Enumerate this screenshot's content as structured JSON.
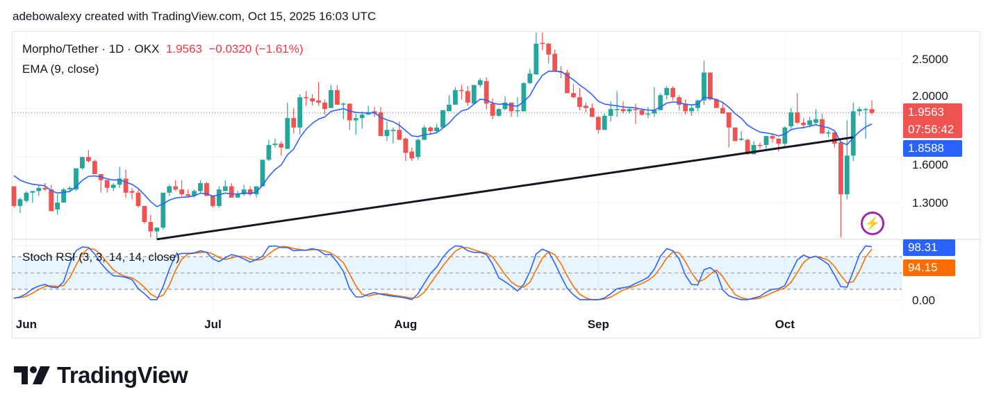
{
  "credit": "adebowalexy created with TradingView.com, Oct 15, 2025 16:03 UTC",
  "legend": {
    "symbol": "Morpho/Tether · 1D · OKX",
    "last": "1.9563",
    "change": "−0.0320 (−1.61%)",
    "ema": "EMA (9, close)",
    "stoch": "Stoch RSI (3, 3, 14, 14, close)"
  },
  "badges": {
    "price": "1.9563",
    "countdown": "07:56:42",
    "ema": "1.8588",
    "k": "98.31",
    "d": "94.15"
  },
  "brand": "TradingView",
  "colors": {
    "up": "#26a69a",
    "down": "#ef5350",
    "ema": "#2962ff",
    "k": "#2962ff",
    "d": "#ff6d00",
    "trend": "#131722",
    "price_line": "#f23645"
  },
  "chart_data": {
    "type": "candlestick",
    "title": "Morpho/Tether · 1D · OKX",
    "first_date": "2025-05-30",
    "last_date": "2025-10-15",
    "scale": "log",
    "price_ticks": [
      {
        "v": 2.5,
        "label": "2.5000"
      },
      {
        "v": 2.0,
        "label": "2.0000"
      },
      {
        "v": 1.6,
        "label": "1.6000"
      },
      {
        "v": 1.3,
        "label": "1.3000"
      }
    ],
    "month_ticks": [
      {
        "i": 2,
        "label": "Jun"
      },
      {
        "i": 32,
        "label": "Jul"
      },
      {
        "i": 63,
        "label": "Aug"
      },
      {
        "i": 94,
        "label": "Sep"
      },
      {
        "i": 124,
        "label": "Oct"
      }
    ],
    "ohlc": [
      [
        1.4,
        1.4,
        1.27,
        1.28
      ],
      [
        1.28,
        1.33,
        1.24,
        1.32
      ],
      [
        1.31,
        1.37,
        1.3,
        1.36
      ],
      [
        1.36,
        1.37,
        1.3,
        1.37
      ],
      [
        1.37,
        1.41,
        1.34,
        1.39
      ],
      [
        1.39,
        1.42,
        1.37,
        1.38
      ],
      [
        1.38,
        1.41,
        1.25,
        1.25
      ],
      [
        1.26,
        1.35,
        1.23,
        1.3
      ],
      [
        1.3,
        1.39,
        1.3,
        1.38
      ],
      [
        1.38,
        1.4,
        1.37,
        1.39
      ],
      [
        1.38,
        1.52,
        1.37,
        1.52
      ],
      [
        1.52,
        1.6,
        1.51,
        1.6
      ],
      [
        1.6,
        1.65,
        1.56,
        1.57
      ],
      [
        1.57,
        1.58,
        1.48,
        1.48
      ],
      [
        1.48,
        1.48,
        1.36,
        1.44
      ],
      [
        1.44,
        1.44,
        1.36,
        1.39
      ],
      [
        1.39,
        1.42,
        1.37,
        1.41
      ],
      [
        1.41,
        1.53,
        1.39,
        1.45
      ],
      [
        1.45,
        1.51,
        1.33,
        1.36
      ],
      [
        1.37,
        1.39,
        1.32,
        1.36
      ],
      [
        1.36,
        1.38,
        1.27,
        1.28
      ],
      [
        1.28,
        1.28,
        1.18,
        1.19
      ],
      [
        1.19,
        1.23,
        1.11,
        1.14
      ],
      [
        1.14,
        1.16,
        1.1,
        1.16
      ],
      [
        1.16,
        1.36,
        1.15,
        1.36
      ],
      [
        1.36,
        1.41,
        1.34,
        1.4
      ],
      [
        1.4,
        1.44,
        1.37,
        1.38
      ],
      [
        1.38,
        1.44,
        1.34,
        1.35
      ],
      [
        1.35,
        1.38,
        1.33,
        1.34
      ],
      [
        1.34,
        1.38,
        1.33,
        1.37
      ],
      [
        1.37,
        1.44,
        1.36,
        1.42
      ],
      [
        1.42,
        1.43,
        1.34,
        1.34
      ],
      [
        1.34,
        1.34,
        1.27,
        1.28
      ],
      [
        1.28,
        1.4,
        1.27,
        1.38
      ],
      [
        1.37,
        1.44,
        1.37,
        1.4
      ],
      [
        1.4,
        1.42,
        1.33,
        1.33
      ],
      [
        1.33,
        1.37,
        1.33,
        1.35
      ],
      [
        1.35,
        1.41,
        1.34,
        1.38
      ],
      [
        1.38,
        1.4,
        1.34,
        1.35
      ],
      [
        1.35,
        1.4,
        1.33,
        1.4
      ],
      [
        1.4,
        1.58,
        1.4,
        1.58
      ],
      [
        1.58,
        1.73,
        1.57,
        1.69
      ],
      [
        1.69,
        1.74,
        1.67,
        1.7
      ],
      [
        1.7,
        1.72,
        1.61,
        1.67
      ],
      [
        1.66,
        2.05,
        1.66,
        1.91
      ],
      [
        1.91,
        2.0,
        1.78,
        1.83
      ],
      [
        1.83,
        2.13,
        1.77,
        2.1
      ],
      [
        2.1,
        2.16,
        2.02,
        2.09
      ],
      [
        2.09,
        2.13,
        2.02,
        2.06
      ],
      [
        2.07,
        2.25,
        2.02,
        2.05
      ],
      [
        2.05,
        2.08,
        1.94,
        1.99
      ],
      [
        2.0,
        2.22,
        2.0,
        2.17
      ],
      [
        2.17,
        2.22,
        2.03,
        2.03
      ],
      [
        2.03,
        2.05,
        1.9,
        2.04
      ],
      [
        2.04,
        2.04,
        1.81,
        1.89
      ],
      [
        1.89,
        1.95,
        1.77,
        1.91
      ],
      [
        1.91,
        1.97,
        1.82,
        1.94
      ],
      [
        1.94,
        2.02,
        1.94,
        1.96
      ],
      [
        1.97,
        2.01,
        1.92,
        1.95
      ],
      [
        1.96,
        2.01,
        1.76,
        1.76
      ],
      [
        1.76,
        1.88,
        1.72,
        1.81
      ],
      [
        1.8,
        1.83,
        1.7,
        1.81
      ],
      [
        1.81,
        1.88,
        1.73,
        1.73
      ],
      [
        1.74,
        1.75,
        1.57,
        1.63
      ],
      [
        1.64,
        1.67,
        1.57,
        1.59
      ],
      [
        1.6,
        1.74,
        1.58,
        1.73
      ],
      [
        1.73,
        1.85,
        1.73,
        1.83
      ],
      [
        1.83,
        1.84,
        1.77,
        1.8
      ],
      [
        1.8,
        1.86,
        1.78,
        1.83
      ],
      [
        1.83,
        1.98,
        1.83,
        1.98
      ],
      [
        1.97,
        2.12,
        1.97,
        2.03
      ],
      [
        2.03,
        2.2,
        2.03,
        2.17
      ],
      [
        2.17,
        2.22,
        2.08,
        2.16
      ],
      [
        2.16,
        2.21,
        2.02,
        2.05
      ],
      [
        2.04,
        2.22,
        2.03,
        2.22
      ],
      [
        2.22,
        2.29,
        2.2,
        2.27
      ],
      [
        2.26,
        2.3,
        1.99,
        2.04
      ],
      [
        2.04,
        2.09,
        1.9,
        1.93
      ],
      [
        1.93,
        2.0,
        1.92,
        1.99
      ],
      [
        1.99,
        2.11,
        1.98,
        2.05
      ],
      [
        2.05,
        2.05,
        1.92,
        1.97
      ],
      [
        1.97,
        2.1,
        1.92,
        1.98
      ],
      [
        1.97,
        2.25,
        1.97,
        2.24
      ],
      [
        2.24,
        2.39,
        2.23,
        2.34
      ],
      [
        2.33,
        2.82,
        2.33,
        2.68
      ],
      [
        2.69,
        2.82,
        2.6,
        2.68
      ],
      [
        2.68,
        2.69,
        2.45,
        2.55
      ],
      [
        2.56,
        2.61,
        2.36,
        2.36
      ],
      [
        2.36,
        2.42,
        2.29,
        2.35
      ],
      [
        2.35,
        2.38,
        2.14,
        2.14
      ],
      [
        2.14,
        2.23,
        2.09,
        2.1
      ],
      [
        2.1,
        2.19,
        1.98,
        2.01
      ],
      [
        2.02,
        2.05,
        1.96,
        2.0
      ],
      [
        2.0,
        2.04,
        1.92,
        1.92
      ],
      [
        1.92,
        1.93,
        1.78,
        1.81
      ],
      [
        1.81,
        1.95,
        1.81,
        1.93
      ],
      [
        1.93,
        2.06,
        1.88,
        1.99
      ],
      [
        1.98,
        2.16,
        1.92,
        1.99
      ],
      [
        1.99,
        2.06,
        1.95,
        1.97
      ],
      [
        1.97,
        2.0,
        1.95,
        1.99
      ],
      [
        1.99,
        2.04,
        1.86,
        1.98
      ],
      [
        1.98,
        2.0,
        1.93,
        1.94
      ],
      [
        1.94,
        2.01,
        1.91,
        1.95
      ],
      [
        1.95,
        2.2,
        1.92,
        1.98
      ],
      [
        1.98,
        2.14,
        1.98,
        2.12
      ],
      [
        2.12,
        2.21,
        2.08,
        2.19
      ],
      [
        2.19,
        2.21,
        2.07,
        2.1
      ],
      [
        2.1,
        2.12,
        1.98,
        2.03
      ],
      [
        2.04,
        2.08,
        1.94,
        1.97
      ],
      [
        1.97,
        2.02,
        1.93,
        2.0
      ],
      [
        2.0,
        2.08,
        1.97,
        2.07
      ],
      [
        2.07,
        2.48,
        2.03,
        2.35
      ],
      [
        2.35,
        2.35,
        2.07,
        2.08
      ],
      [
        2.08,
        2.09,
        2.0,
        2.0
      ],
      [
        2.0,
        2.06,
        1.95,
        1.95
      ],
      [
        1.96,
        1.96,
        1.67,
        1.83
      ],
      [
        1.83,
        1.83,
        1.72,
        1.72
      ],
      [
        1.73,
        1.8,
        1.72,
        1.74
      ],
      [
        1.73,
        1.74,
        1.62,
        1.62
      ],
      [
        1.62,
        1.72,
        1.62,
        1.69
      ],
      [
        1.69,
        1.71,
        1.66,
        1.688
      ],
      [
        1.69,
        1.76,
        1.66,
        1.76
      ],
      [
        1.76,
        1.78,
        1.71,
        1.74
      ],
      [
        1.74,
        1.74,
        1.64,
        1.7
      ],
      [
        1.7,
        1.84,
        1.68,
        1.83
      ],
      [
        1.84,
        2.0,
        1.82,
        1.96
      ],
      [
        1.96,
        2.14,
        1.86,
        1.87
      ],
      [
        1.87,
        1.91,
        1.82,
        1.85
      ],
      [
        1.85,
        1.92,
        1.83,
        1.89
      ],
      [
        1.87,
        1.99,
        1.85,
        1.9
      ],
      [
        1.9,
        1.95,
        1.78,
        1.78
      ],
      [
        1.78,
        1.81,
        1.75,
        1.79
      ],
      [
        1.79,
        1.79,
        1.67,
        1.7
      ],
      [
        1.71,
        1.71,
        1.11,
        1.35
      ],
      [
        1.35,
        1.89,
        1.32,
        1.61
      ],
      [
        1.61,
        2.05,
        1.57,
        1.97
      ],
      [
        1.97,
        2.01,
        1.93,
        1.99
      ],
      [
        1.98,
        2.0,
        1.74,
        1.99
      ],
      [
        1.99,
        2.07,
        1.94,
        1.9563
      ]
    ],
    "ema": {
      "period": 9,
      "start": 1.47
    },
    "trendline": [
      {
        "i": 23,
        "price": 1.1
      },
      {
        "i": 135,
        "price": 1.75
      }
    ],
    "stoch": {
      "levels": [
        80,
        50,
        20
      ],
      "tick_label": "0.00",
      "k": [
        3.6,
        6,
        12,
        21,
        26,
        29,
        24,
        23,
        34,
        68,
        91,
        98,
        97,
        85,
        68,
        55,
        45,
        44,
        42,
        38,
        21,
        12,
        1,
        1,
        25,
        57,
        83,
        86,
        86,
        87,
        91,
        88,
        76,
        71,
        78,
        84,
        81,
        76,
        70,
        75,
        81,
        99,
        100,
        97,
        97,
        91,
        92,
        92,
        95,
        92,
        84,
        84,
        70,
        53,
        21,
        6,
        6,
        11,
        14,
        11,
        9,
        7,
        6,
        4,
        1,
        12,
        31,
        49,
        61,
        79,
        92,
        100,
        99,
        91,
        88,
        88,
        84,
        66,
        41,
        34,
        26,
        17,
        29,
        53,
        85,
        94,
        89,
        68,
        44,
        22,
        10,
        1,
        1,
        1,
        1,
        4,
        12,
        21,
        23,
        25,
        31,
        36,
        42,
        57,
        81,
        95,
        91,
        76,
        46,
        29,
        28,
        56,
        60,
        51,
        19,
        8,
        4,
        1,
        1,
        4,
        7,
        15,
        20,
        21,
        27,
        51,
        74,
        83,
        78,
        81,
        74,
        66,
        46,
        25,
        24,
        53,
        84,
        100,
        98.31
      ],
      "d_smoothing": 3
    }
  }
}
